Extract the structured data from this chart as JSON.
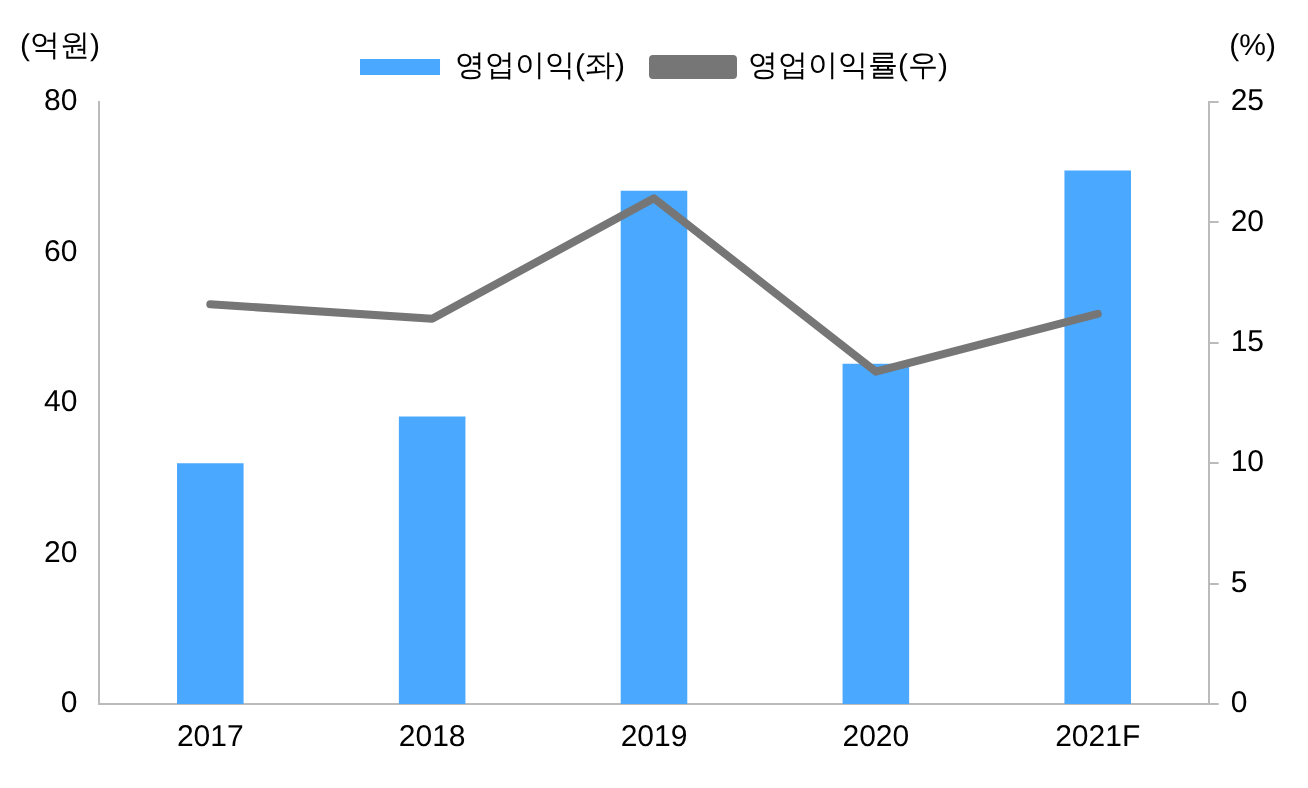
{
  "chart_data": {
    "type": "bar",
    "ylabel": "(억원)",
    "y2label": "(%)",
    "categories": [
      "2017",
      "2018",
      "2019",
      "2020",
      "2021F"
    ],
    "series": [
      {
        "name": "영업이익(좌)",
        "color": "#4aa8ff",
        "values": [
          32,
          38.2,
          68.2,
          45.2,
          70.9
        ]
      },
      {
        "name": "영업이익률(우)",
        "type": "line",
        "axis": "y2",
        "color": "#767676",
        "values": [
          16.6,
          16,
          21,
          13.8,
          16.2
        ]
      }
    ],
    "ylim": [
      0,
      80
    ],
    "yticks": [
      0,
      20,
      40,
      60,
      80
    ],
    "y2lim": [
      0,
      25
    ],
    "y2ticks": [
      0,
      5,
      10,
      15,
      20,
      25
    ],
    "grid": false,
    "legend": "top",
    "marker": "none"
  }
}
